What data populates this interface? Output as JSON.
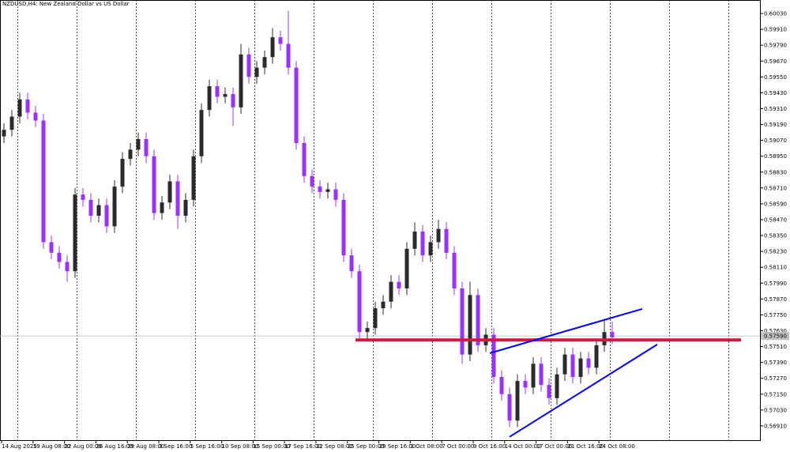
{
  "chart_data": {
    "type": "candlestick",
    "title": "NZDUSD,H4:  New Zealand Dollar vs US Dollar",
    "x_labels": [
      "14 Aug 2025",
      "19 Aug 08:00",
      "22 Aug 00:00",
      "26 Aug 16:00",
      "29 Aug 08:00",
      "3 Sep 16:00",
      "5 Sep 16:00",
      "10 Sep 08:00",
      "15 Sep 00:00",
      "17 Sep 16:00",
      "22 Sep 08:00",
      "25 Sep 00:00",
      "29 Sep 16:00",
      "2 Oct 08:00",
      "7 Oct 00:00",
      "9 Oct 16:00",
      "14 Oct 00:00",
      "17 Oct 00:00",
      "21 Oct 16:00",
      "24 Oct 08:00"
    ],
    "open": [
      0.591,
      0.5915,
      0.5925,
      0.5938,
      0.5928,
      0.5922,
      0.583,
      0.5822,
      0.5815,
      0.5808,
      0.5866,
      0.5862,
      0.585,
      0.5858,
      0.5842,
      0.5872,
      0.5893,
      0.59,
      0.5908,
      0.5895,
      0.5852,
      0.586,
      0.5876,
      0.585,
      0.5862,
      0.5895,
      0.593,
      0.5948,
      0.594,
      0.5942,
      0.5932,
      0.5972,
      0.5955,
      0.5962,
      0.597,
      0.5985,
      0.598,
      0.5962,
      0.5905,
      0.588,
      0.5872,
      0.5868,
      0.587,
      0.5862,
      0.582,
      0.5808,
      0.5762,
      0.5765,
      0.578,
      0.5785,
      0.58,
      0.5795,
      0.5825,
      0.5838,
      0.582,
      0.583,
      0.584,
      0.5822,
      0.5795,
      0.5745,
      0.579,
      0.5752,
      0.576,
      0.5728,
      0.5715,
      0.5695,
      0.5725,
      0.572,
      0.5738,
      0.5722,
      0.5712,
      0.573,
      0.5745,
      0.5728,
      0.5742,
      0.5735,
      0.5752,
      0.5762
    ],
    "high": [
      0.592,
      0.593,
      0.5943,
      0.5943,
      0.5933,
      0.5927,
      0.5835,
      0.5827,
      0.582,
      0.5871,
      0.5871,
      0.5867,
      0.5863,
      0.5863,
      0.5877,
      0.5898,
      0.5905,
      0.5913,
      0.5913,
      0.59,
      0.5865,
      0.5881,
      0.5881,
      0.5867,
      0.59,
      0.5935,
      0.5953,
      0.5953,
      0.5947,
      0.5947,
      0.598,
      0.5977,
      0.5967,
      0.5975,
      0.5992,
      0.599,
      0.6005,
      0.5967,
      0.591,
      0.5885,
      0.5877,
      0.5875,
      0.5875,
      0.5867,
      0.5825,
      0.5813,
      0.577,
      0.5785,
      0.579,
      0.5805,
      0.5805,
      0.583,
      0.5845,
      0.5843,
      0.5835,
      0.5847,
      0.5845,
      0.5827,
      0.58,
      0.58,
      0.5795,
      0.5765,
      0.5765,
      0.5733,
      0.572,
      0.573,
      0.573,
      0.5743,
      0.5743,
      0.5727,
      0.5735,
      0.575,
      0.575,
      0.5747,
      0.5747,
      0.5757,
      0.5772,
      0.577
    ],
    "low": [
      0.5905,
      0.591,
      0.592,
      0.5923,
      0.5917,
      0.5825,
      0.5817,
      0.581,
      0.58,
      0.5803,
      0.5857,
      0.5845,
      0.5845,
      0.5837,
      0.5837,
      0.5867,
      0.5888,
      0.5895,
      0.589,
      0.5847,
      0.5847,
      0.5855,
      0.584,
      0.5845,
      0.5857,
      0.589,
      0.5925,
      0.5935,
      0.5935,
      0.5918,
      0.5927,
      0.595,
      0.595,
      0.5957,
      0.5965,
      0.5975,
      0.5957,
      0.59,
      0.5875,
      0.5867,
      0.5863,
      0.5863,
      0.5857,
      0.5815,
      0.5803,
      0.5757,
      0.5757,
      0.576,
      0.5775,
      0.578,
      0.579,
      0.579,
      0.582,
      0.5815,
      0.5815,
      0.5825,
      0.5817,
      0.579,
      0.5738,
      0.574,
      0.5747,
      0.5747,
      0.5723,
      0.571,
      0.569,
      0.569,
      0.5715,
      0.5715,
      0.5717,
      0.5707,
      0.5707,
      0.5725,
      0.5723,
      0.5723,
      0.573,
      0.573,
      0.5747,
      0.5753
    ],
    "close": [
      0.5915,
      0.5925,
      0.5938,
      0.5928,
      0.5922,
      0.583,
      0.5822,
      0.5815,
      0.5808,
      0.5866,
      0.5862,
      0.585,
      0.5858,
      0.5842,
      0.5872,
      0.5893,
      0.59,
      0.5908,
      0.5895,
      0.5852,
      0.586,
      0.5876,
      0.585,
      0.5862,
      0.5895,
      0.593,
      0.5948,
      0.594,
      0.5942,
      0.5932,
      0.5972,
      0.5955,
      0.5962,
      0.597,
      0.5985,
      0.598,
      0.5962,
      0.5905,
      0.588,
      0.5872,
      0.5868,
      0.587,
      0.5862,
      0.582,
      0.5808,
      0.5762,
      0.5765,
      0.578,
      0.5785,
      0.58,
      0.5795,
      0.5825,
      0.5838,
      0.582,
      0.583,
      0.584,
      0.5822,
      0.5795,
      0.5745,
      0.579,
      0.5752,
      0.576,
      0.5728,
      0.5715,
      0.5695,
      0.5725,
      0.572,
      0.5738,
      0.5722,
      0.5712,
      0.573,
      0.5745,
      0.5728,
      0.5742,
      0.5735,
      0.5752,
      0.5762,
      0.5758
    ],
    "up_color": "#2b2b2b",
    "down_color": "#9b30ff",
    "ylim": [
      0.56802,
      0.60132
    ],
    "yticks": [
      {
        "value": 0.6003,
        "label": "0.60030"
      },
      {
        "value": 0.5991,
        "label": "0.59910"
      },
      {
        "value": 0.5979,
        "label": "0.59790"
      },
      {
        "value": 0.5967,
        "label": "0.59670"
      },
      {
        "value": 0.5955,
        "label": "0.59550"
      },
      {
        "value": 0.5943,
        "label": "0.59430"
      },
      {
        "value": 0.5931,
        "label": "0.59310"
      },
      {
        "value": 0.5919,
        "label": "0.59190"
      },
      {
        "value": 0.5907,
        "label": "0.59070"
      },
      {
        "value": 0.5895,
        "label": "0.58950"
      },
      {
        "value": 0.5883,
        "label": "0.58830"
      },
      {
        "value": 0.5871,
        "label": "0.58710"
      },
      {
        "value": 0.5859,
        "label": "0.58590"
      },
      {
        "value": 0.5847,
        "label": "0.58470"
      },
      {
        "value": 0.5835,
        "label": "0.58350"
      },
      {
        "value": 0.5823,
        "label": "0.58230"
      },
      {
        "value": 0.5811,
        "label": "0.58110"
      },
      {
        "value": 0.5799,
        "label": "0.57990"
      },
      {
        "value": 0.5787,
        "label": "0.57870"
      },
      {
        "value": 0.5775,
        "label": "0.57750"
      },
      {
        "value": 0.5763,
        "label": "0.57630"
      },
      {
        "value": 0.5751,
        "label": "0.57510"
      },
      {
        "value": 0.5739,
        "label": "0.57390"
      },
      {
        "value": 0.5727,
        "label": "0.57270"
      },
      {
        "value": 0.5715,
        "label": "0.57150"
      },
      {
        "value": 0.5703,
        "label": "0.57030"
      },
      {
        "value": 0.5691,
        "label": "0.56910"
      }
    ],
    "current_price": {
      "value": 0.5759,
      "label": "0.57590"
    },
    "lines": [
      {
        "color": "#dc143c",
        "values": [
          0.5756,
          0.5756
        ]
      },
      {
        "color": "#0000ff",
        "values": [
          0.5746,
          0.57795
        ]
      },
      {
        "color": "#0000ff",
        "values": [
          0.56827,
          0.57526
        ]
      }
    ],
    "grid": true
  }
}
